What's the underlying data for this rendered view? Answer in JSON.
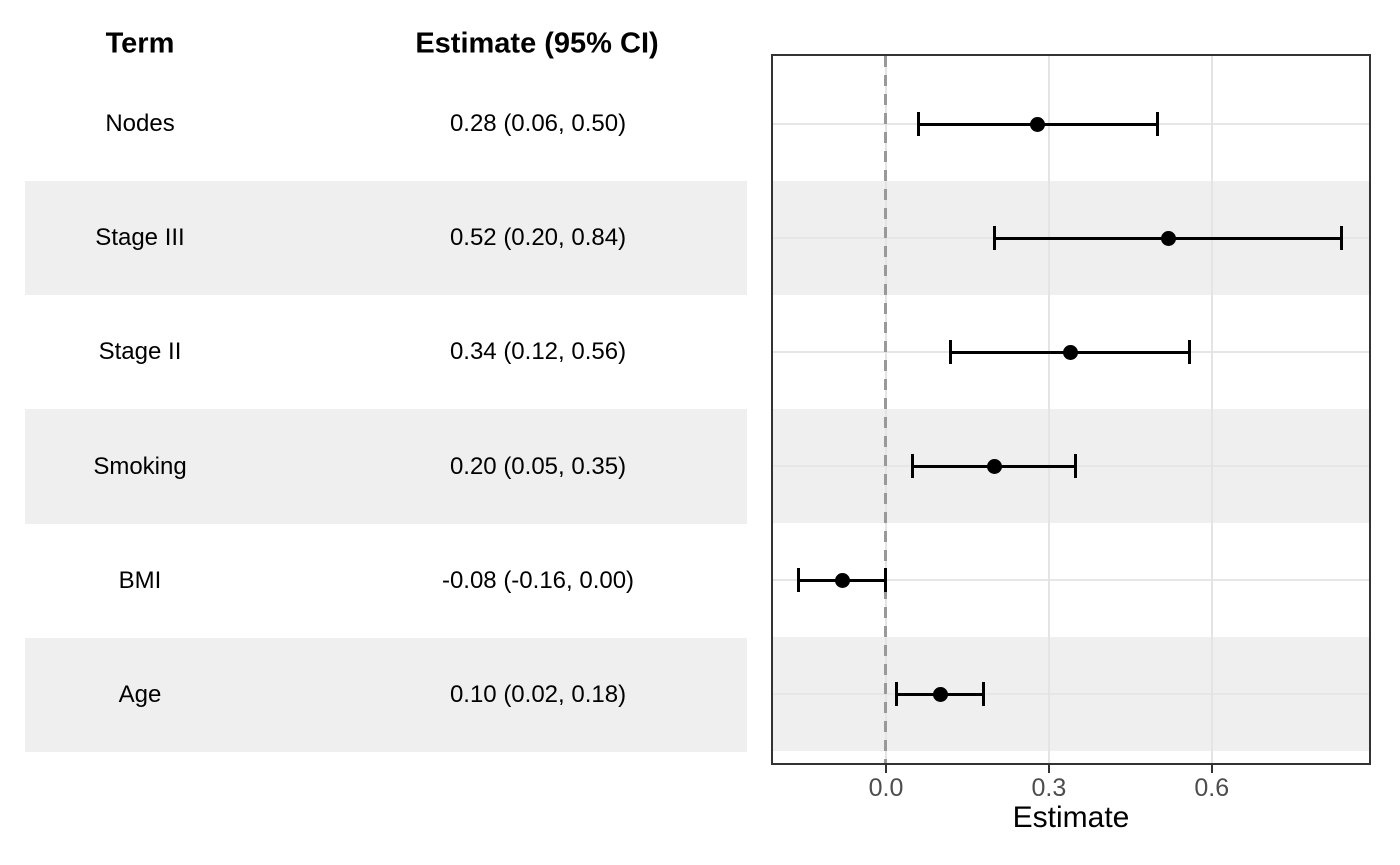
{
  "table": {
    "headers": {
      "term": "Term",
      "estimate": "Estimate (95% CI)"
    },
    "rows": [
      {
        "term": "Nodes",
        "estimate_ci": "0.28 (0.06, 0.50)"
      },
      {
        "term": "Stage III",
        "estimate_ci": "0.52 (0.20, 0.84)"
      },
      {
        "term": "Stage II",
        "estimate_ci": "0.34 (0.12, 0.56)"
      },
      {
        "term": "Smoking",
        "estimate_ci": "0.20 (0.05, 0.35)"
      },
      {
        "term": "BMI",
        "estimate_ci": "-0.08 (-0.16, 0.00)"
      },
      {
        "term": "Age",
        "estimate_ci": "0.10 (0.02, 0.18)"
      }
    ]
  },
  "chart_data": {
    "type": "scatter",
    "subtype": "forest-plot",
    "orientation": "horizontal",
    "terms": [
      "Nodes",
      "Stage III",
      "Stage II",
      "Smoking",
      "BMI",
      "Age"
    ],
    "estimates": [
      0.28,
      0.52,
      0.34,
      0.2,
      -0.08,
      0.1
    ],
    "ci_low": [
      0.06,
      0.2,
      0.12,
      0.05,
      -0.16,
      0.02
    ],
    "ci_high": [
      0.5,
      0.84,
      0.56,
      0.35,
      0.0,
      0.18
    ],
    "xlabel": "Estimate",
    "x_ticks": [
      0.0,
      0.3,
      0.6
    ],
    "x_tick_labels": [
      "0.0",
      "0.3",
      "0.6"
    ],
    "xlim": [
      -0.208,
      0.89
    ],
    "reference_line": 0,
    "reference_line_style": "dashed",
    "grid": "major-only",
    "legend": "none",
    "shaded_row_indices": [
      1,
      3,
      5
    ]
  },
  "colors": {
    "background": "#FFFFFF",
    "stripe": "#EFEFEF",
    "gridline": "#E6E6E6",
    "panel_border": "#333333",
    "reference_line": "#999999",
    "axis_tick_text": "#4D4D4D",
    "text": "#000000",
    "marker": "#000000"
  }
}
